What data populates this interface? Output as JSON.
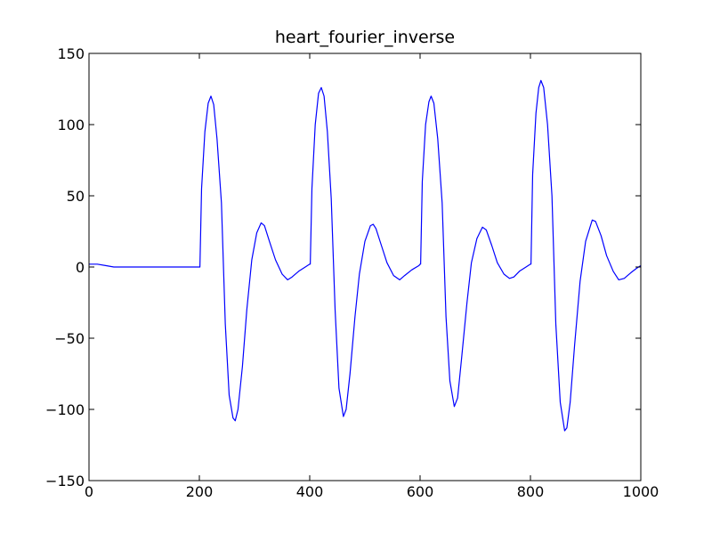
{
  "chart_data": {
    "type": "line",
    "title": "heart_fourier_inverse",
    "xlabel": "",
    "ylabel": "",
    "xlim": [
      0,
      1000
    ],
    "ylim": [
      -150,
      150
    ],
    "grid": false,
    "x_ticks": [
      0,
      200,
      400,
      600,
      800,
      1000
    ],
    "x_tick_labels": [
      "0",
      "200",
      "400",
      "600",
      "800",
      "1000"
    ],
    "y_ticks": [
      150,
      100,
      50,
      0,
      -50,
      -100,
      -150
    ],
    "y_tick_labels": [
      "150",
      "100",
      "50",
      "0",
      "−50",
      "−100",
      "−150"
    ],
    "series": [
      {
        "color": "#0000ff",
        "points": [
          [
            0,
            2
          ],
          [
            15,
            2
          ],
          [
            30,
            1
          ],
          [
            45,
            0
          ],
          [
            200,
            0
          ],
          [
            201,
            0
          ],
          [
            204,
            55
          ],
          [
            210,
            95
          ],
          [
            216,
            115
          ],
          [
            221,
            120
          ],
          [
            226,
            114
          ],
          [
            232,
            90
          ],
          [
            240,
            45
          ],
          [
            247,
            -40
          ],
          [
            254,
            -90
          ],
          [
            261,
            -106
          ],
          [
            265,
            -108
          ],
          [
            270,
            -100
          ],
          [
            278,
            -70
          ],
          [
            286,
            -30
          ],
          [
            295,
            5
          ],
          [
            304,
            24
          ],
          [
            312,
            31
          ],
          [
            318,
            29
          ],
          [
            327,
            18
          ],
          [
            338,
            5
          ],
          [
            350,
            -5
          ],
          [
            360,
            -9
          ],
          [
            368,
            -7
          ],
          [
            380,
            -3
          ],
          [
            392,
            0
          ],
          [
            400,
            2
          ],
          [
            401,
            2
          ],
          [
            404,
            55
          ],
          [
            410,
            100
          ],
          [
            416,
            122
          ],
          [
            421,
            126
          ],
          [
            426,
            120
          ],
          [
            432,
            95
          ],
          [
            439,
            48
          ],
          [
            446,
            -30
          ],
          [
            453,
            -85
          ],
          [
            461,
            -105
          ],
          [
            466,
            -100
          ],
          [
            473,
            -75
          ],
          [
            482,
            -35
          ],
          [
            490,
            -5
          ],
          [
            500,
            18
          ],
          [
            510,
            29
          ],
          [
            515,
            30
          ],
          [
            520,
            27
          ],
          [
            530,
            15
          ],
          [
            540,
            3
          ],
          [
            552,
            -6
          ],
          [
            563,
            -9
          ],
          [
            572,
            -6
          ],
          [
            585,
            -2
          ],
          [
            598,
            1
          ],
          [
            600,
            2
          ],
          [
            601,
            2
          ],
          [
            604,
            60
          ],
          [
            610,
            100
          ],
          [
            616,
            116
          ],
          [
            620,
            120
          ],
          [
            625,
            115
          ],
          [
            632,
            90
          ],
          [
            640,
            45
          ],
          [
            647,
            -35
          ],
          [
            654,
            -80
          ],
          [
            662,
            -98
          ],
          [
            668,
            -92
          ],
          [
            675,
            -65
          ],
          [
            685,
            -25
          ],
          [
            693,
            3
          ],
          [
            703,
            20
          ],
          [
            713,
            28
          ],
          [
            720,
            26
          ],
          [
            730,
            15
          ],
          [
            740,
            3
          ],
          [
            752,
            -5
          ],
          [
            762,
            -8
          ],
          [
            770,
            -7
          ],
          [
            780,
            -3
          ],
          [
            792,
            0
          ],
          [
            800,
            2
          ],
          [
            801,
            2
          ],
          [
            804,
            65
          ],
          [
            810,
            108
          ],
          [
            815,
            126
          ],
          [
            819,
            131
          ],
          [
            824,
            126
          ],
          [
            831,
            100
          ],
          [
            839,
            50
          ],
          [
            846,
            -40
          ],
          [
            854,
            -95
          ],
          [
            862,
            -115
          ],
          [
            866,
            -113
          ],
          [
            872,
            -95
          ],
          [
            880,
            -55
          ],
          [
            890,
            -10
          ],
          [
            900,
            18
          ],
          [
            912,
            33
          ],
          [
            918,
            32
          ],
          [
            928,
            22
          ],
          [
            938,
            8
          ],
          [
            950,
            -3
          ],
          [
            960,
            -9
          ],
          [
            970,
            -8
          ],
          [
            982,
            -4
          ],
          [
            992,
            -1
          ],
          [
            1000,
            1
          ]
        ]
      }
    ]
  }
}
